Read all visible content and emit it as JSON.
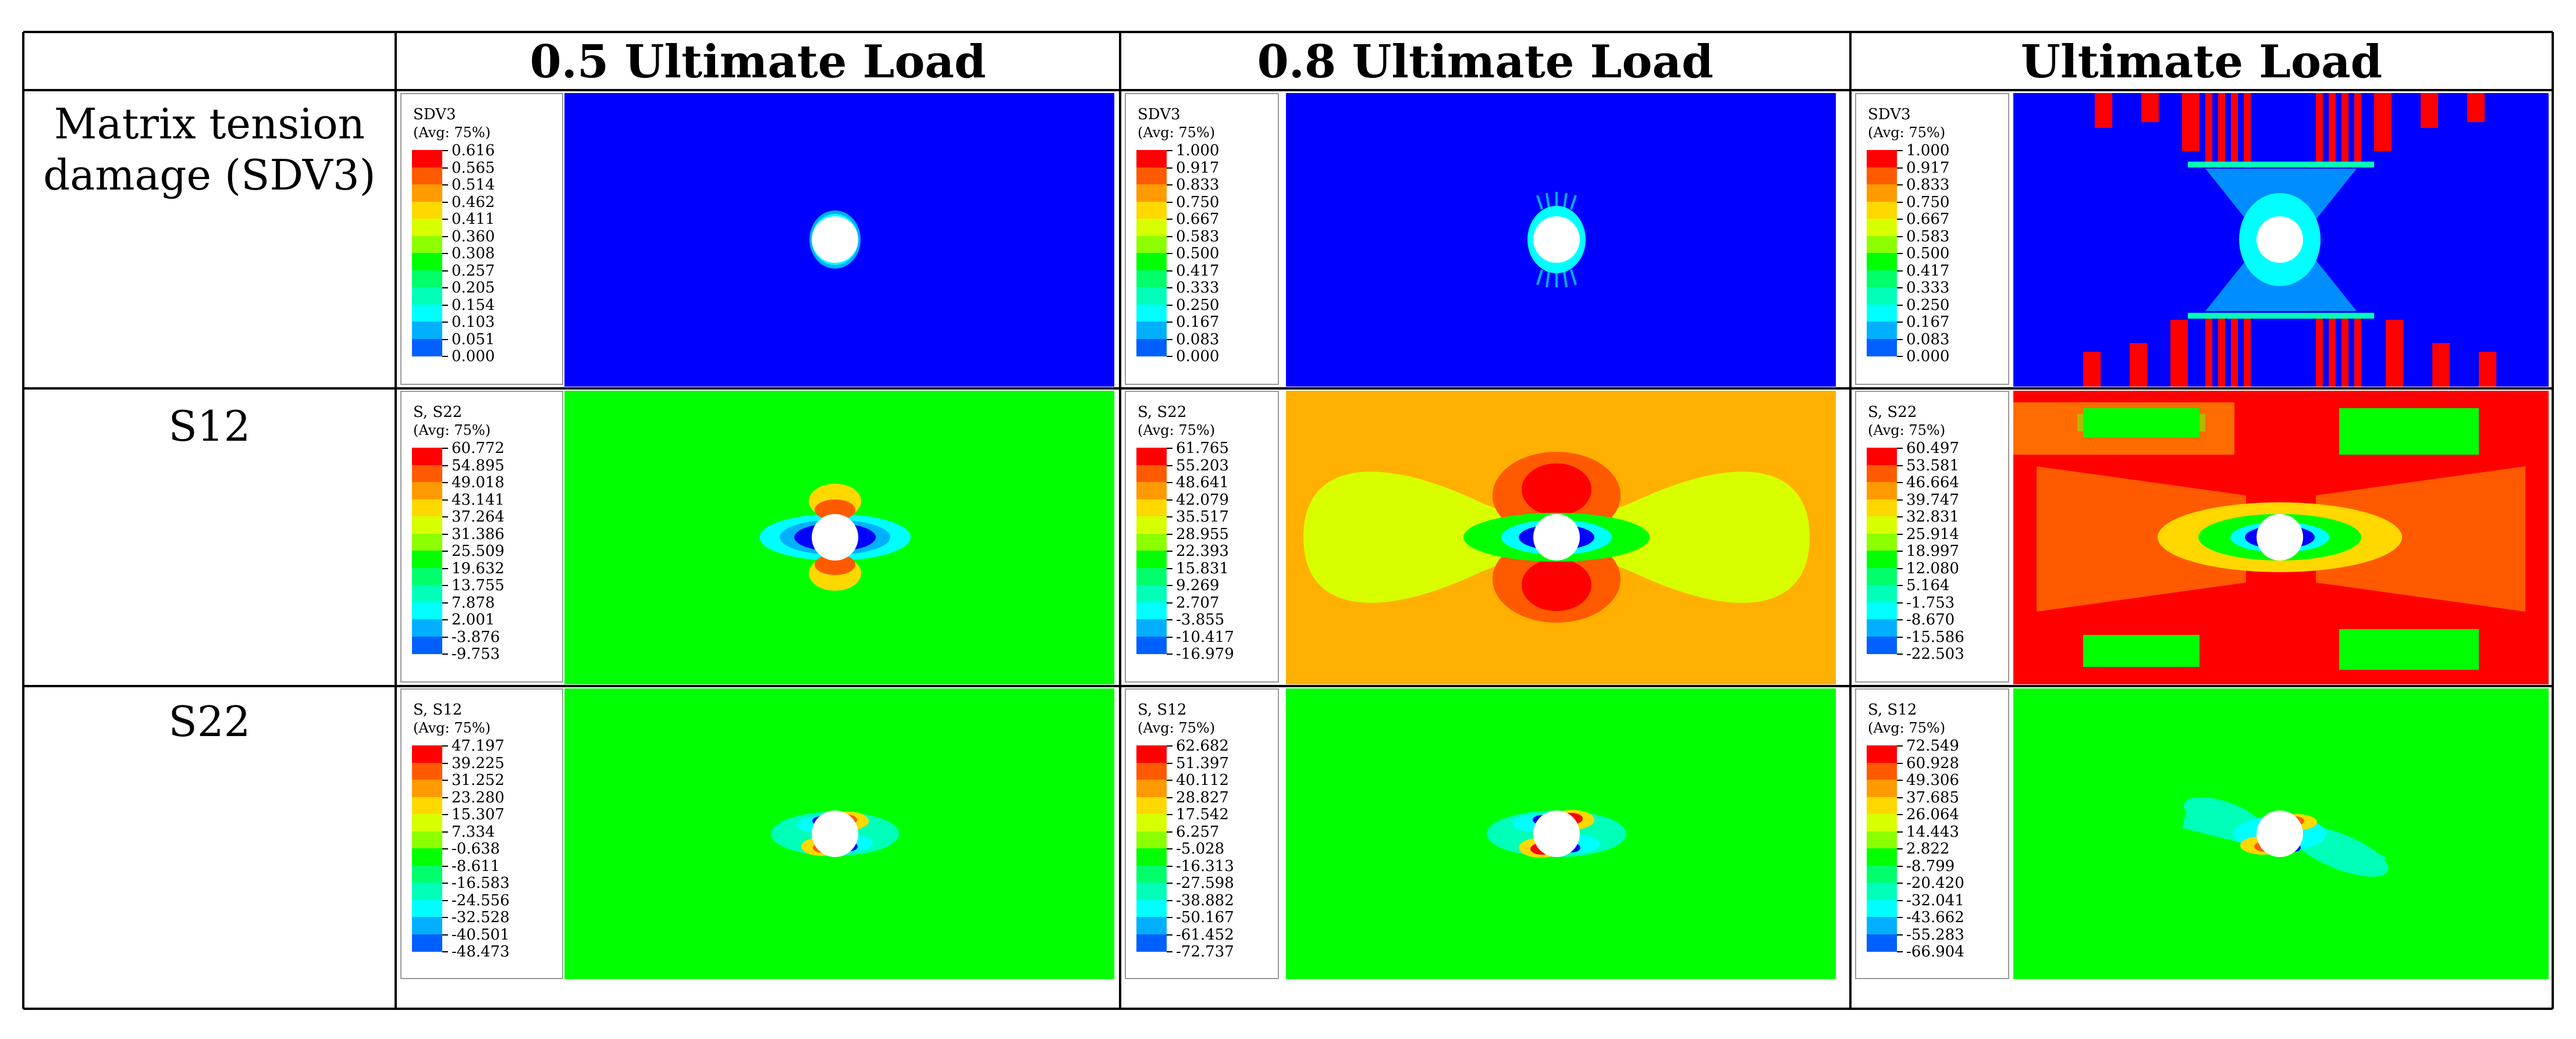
{
  "table": {
    "headers": [
      "0.5 Ultimate Load",
      "0.8 Ultimate Load",
      "Ultimate Load"
    ],
    "rows": [
      {
        "label_line1": "Matrix tension",
        "label_line2": "damage (SDV3)"
      },
      {
        "label_line1": "S12",
        "label_line2": ""
      },
      {
        "label_line1": "S22",
        "label_line2": ""
      }
    ]
  },
  "colors": {
    "contour_scale": [
      "#ff0000",
      "#ff5a00",
      "#ff9a00",
      "#ffd800",
      "#d8ff00",
      "#8cff00",
      "#00ff00",
      "#00ff6a",
      "#00ffb8",
      "#00ffff",
      "#00b0ff",
      "#0060ff",
      "#0000ff"
    ],
    "hole": "#ffffff",
    "cell_border": "#000000"
  },
  "legends": [
    [
      {
        "title": "SDV3",
        "subtitle": "(Avg: 75%)",
        "values": [
          "0.616",
          "0.565",
          "0.514",
          "0.462",
          "0.411",
          "0.360",
          "0.308",
          "0.257",
          "0.205",
          "0.154",
          "0.103",
          "0.051",
          "0.000"
        ]
      },
      {
        "title": "SDV3",
        "subtitle": "(Avg: 75%)",
        "values": [
          "1.000",
          "0.917",
          "0.833",
          "0.750",
          "0.667",
          "0.583",
          "0.500",
          "0.417",
          "0.333",
          "0.250",
          "0.167",
          "0.083",
          "0.000"
        ]
      },
      {
        "title": "SDV3",
        "subtitle": "(Avg: 75%)",
        "values": [
          "1.000",
          "0.917",
          "0.833",
          "0.750",
          "0.667",
          "0.583",
          "0.500",
          "0.417",
          "0.333",
          "0.250",
          "0.167",
          "0.083",
          "0.000"
        ]
      }
    ],
    [
      {
        "title": "S, S22",
        "subtitle": "(Avg: 75%)",
        "values": [
          "60.772",
          "54.895",
          "49.018",
          "43.141",
          "37.264",
          "31.386",
          "25.509",
          "19.632",
          "13.755",
          "7.878",
          "2.001",
          "-3.876",
          "-9.753"
        ]
      },
      {
        "title": "S, S22",
        "subtitle": "(Avg: 75%)",
        "values": [
          "61.765",
          "55.203",
          "48.641",
          "42.079",
          "35.517",
          "28.955",
          "22.393",
          "15.831",
          "9.269",
          "2.707",
          "-3.855",
          "-10.417",
          "-16.979"
        ]
      },
      {
        "title": "S, S22",
        "subtitle": "(Avg: 75%)",
        "values": [
          "60.497",
          "53.581",
          "46.664",
          "39.747",
          "32.831",
          "25.914",
          "18.997",
          "12.080",
          "5.164",
          "-1.753",
          "-8.670",
          "-15.586",
          "-22.503"
        ]
      }
    ],
    [
      {
        "title": "S, S12",
        "subtitle": "(Avg: 75%)",
        "values": [
          "47.197",
          "39.225",
          "31.252",
          "23.280",
          "15.307",
          "7.334",
          "-0.638",
          "-8.611",
          "-16.583",
          "-24.556",
          "-32.528",
          "-40.501",
          "-48.473"
        ]
      },
      {
        "title": "S, S12",
        "subtitle": "(Avg: 75%)",
        "values": [
          "62.682",
          "51.397",
          "40.112",
          "28.827",
          "17.542",
          "6.257",
          "-5.028",
          "-16.313",
          "-27.598",
          "-38.882",
          "-50.167",
          "-61.452",
          "-72.737"
        ]
      },
      {
        "title": "S, S12",
        "subtitle": "(Avg: 75%)",
        "values": [
          "72.549",
          "60.928",
          "49.306",
          "37.685",
          "26.064",
          "14.443",
          "2.822",
          "-8.799",
          "-20.420",
          "-32.041",
          "-43.662",
          "-55.283",
          "-66.904"
        ]
      }
    ]
  ]
}
